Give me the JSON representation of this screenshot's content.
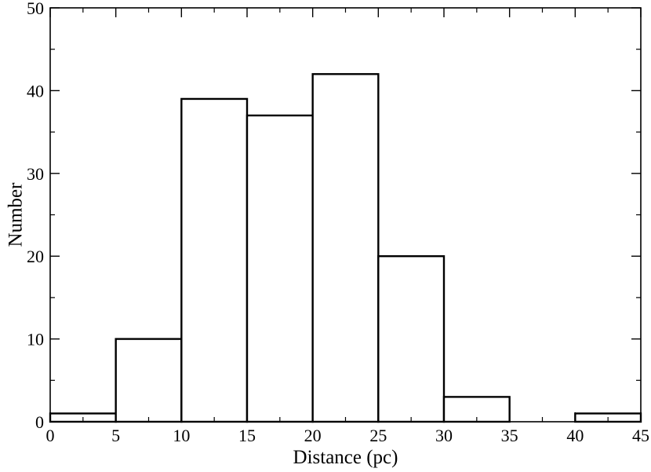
{
  "chart_data": {
    "type": "bar",
    "histogram": true,
    "bin_edges": [
      0,
      5,
      10,
      15,
      20,
      25,
      30,
      35,
      40,
      45
    ],
    "values": [
      1,
      10,
      39,
      37,
      42,
      20,
      3,
      0,
      1
    ],
    "xlabel": "Distance (pc)",
    "ylabel": "Number",
    "xlim": [
      0,
      45
    ],
    "ylim": [
      0,
      50
    ],
    "x_ticks": [
      0,
      5,
      10,
      15,
      20,
      25,
      30,
      35,
      40,
      45
    ],
    "y_ticks": [
      0,
      10,
      20,
      30,
      40,
      50
    ],
    "grid": false,
    "legend": "none",
    "bar_fill": "#ffffff",
    "line_color": "#000000"
  }
}
